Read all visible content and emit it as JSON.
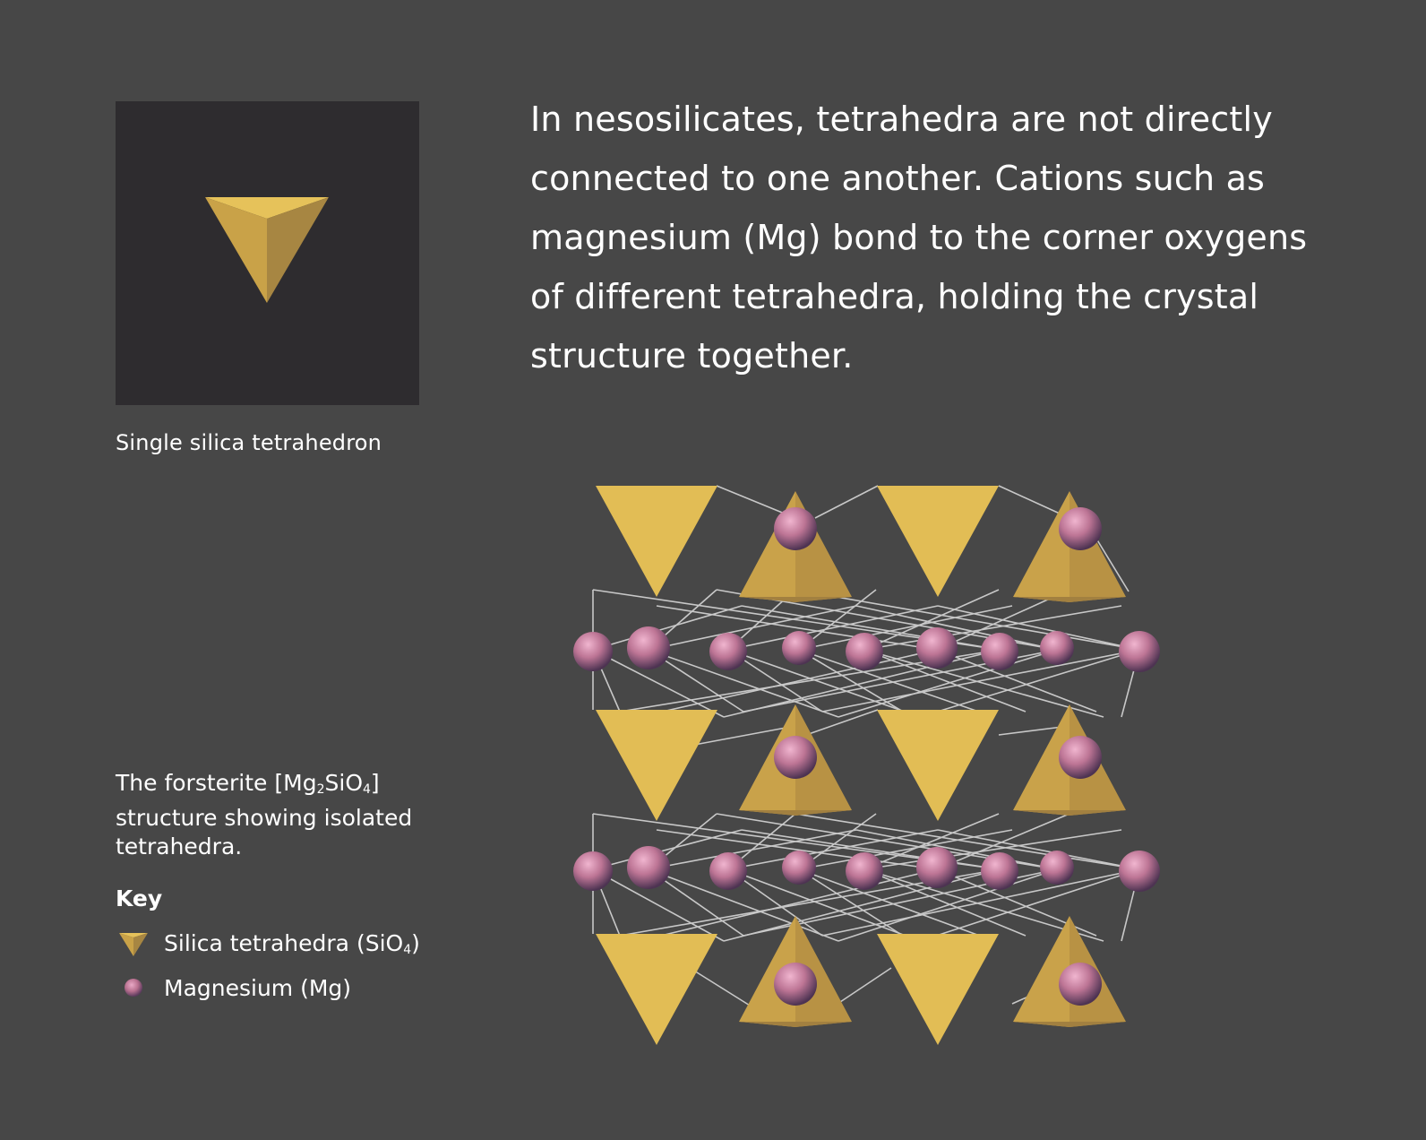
{
  "intro_text": "In nesosilicates, tetrahedra are not directly connected to one another. Cations such as magnesium (Mg) bond to the corner oxygens of different tetrahedra, holding the crystal structure together.",
  "single_tetrahedron": {
    "caption": "Single silica tetrahedron"
  },
  "structure_caption": {
    "prefix": "The forsterite [Mg",
    "sub1": "2",
    "mid": "SiO",
    "sub2": "4",
    "suffix": "] structure showing isolated tetrahedra."
  },
  "key": {
    "title": "Key",
    "items": [
      {
        "label_prefix": "Silica tetrahedra (SiO",
        "label_sub": "4",
        "label_suffix": ")",
        "icon": "tetrahedron-icon"
      },
      {
        "label_prefix": "Magnesium (Mg)",
        "label_sub": "",
        "label_suffix": "",
        "icon": "magnesium-sphere-icon"
      }
    ]
  },
  "colors": {
    "background": "#474747",
    "panel": "#2e2c2f",
    "tetra_light": "#e0bb52",
    "tetra_mid": "#c7a04a",
    "tetra_dark": "#a88540",
    "magnesium": "#c07a9a",
    "bond_line": "#c8c8c8",
    "text": "#ffffff"
  }
}
